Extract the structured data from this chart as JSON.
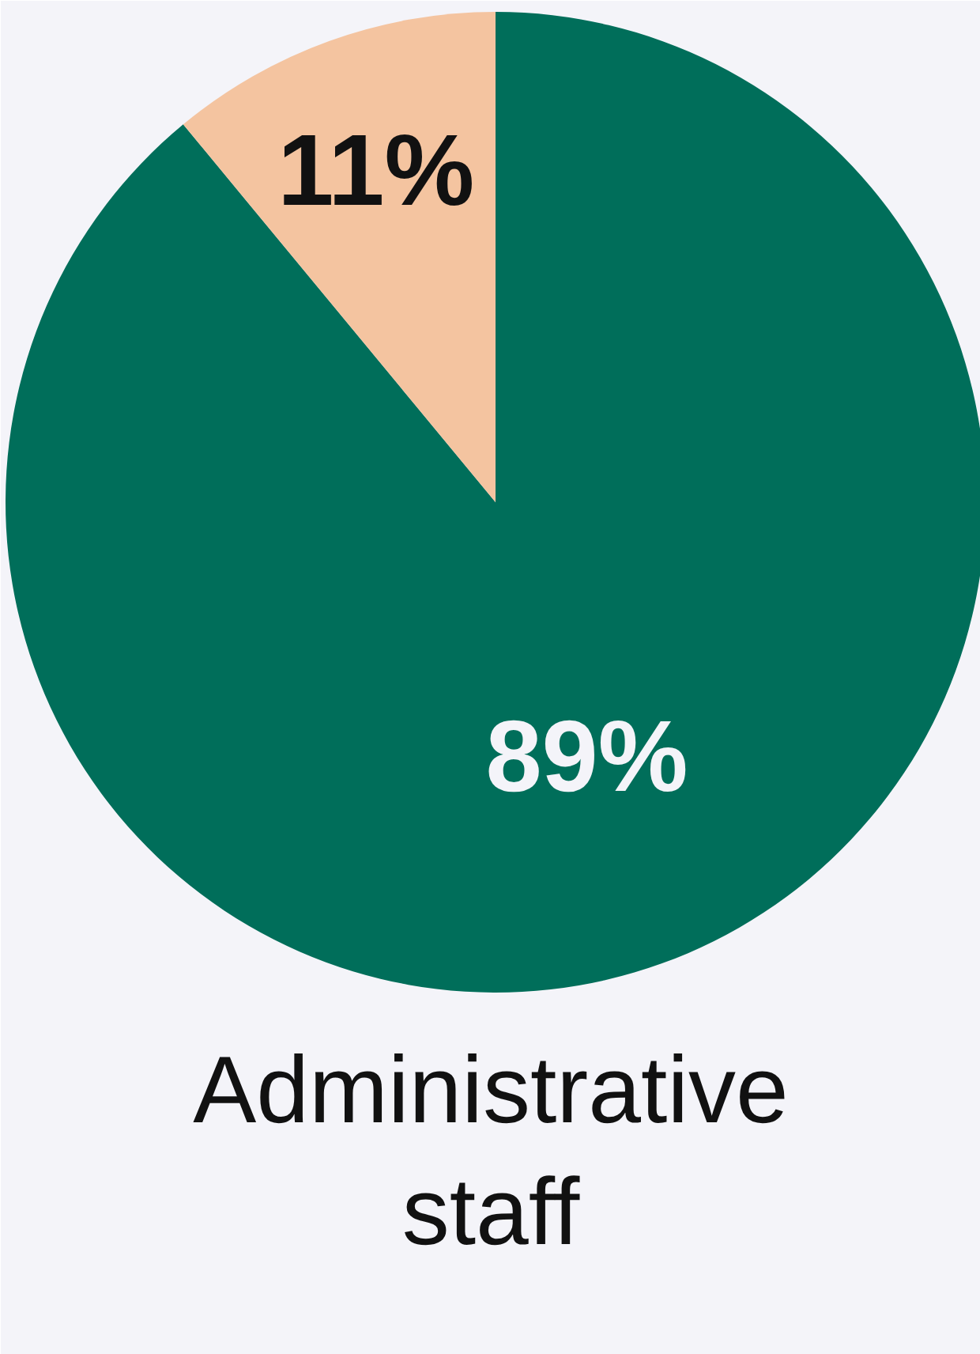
{
  "chart_data": {
    "type": "pie",
    "title": "Administrative staff",
    "categories": [
      null,
      null
    ],
    "values": [
      89,
      11
    ],
    "colors": [
      "#006e5a",
      "#f4c4a0"
    ],
    "value_labels": [
      "89%",
      "11%"
    ]
  }
}
